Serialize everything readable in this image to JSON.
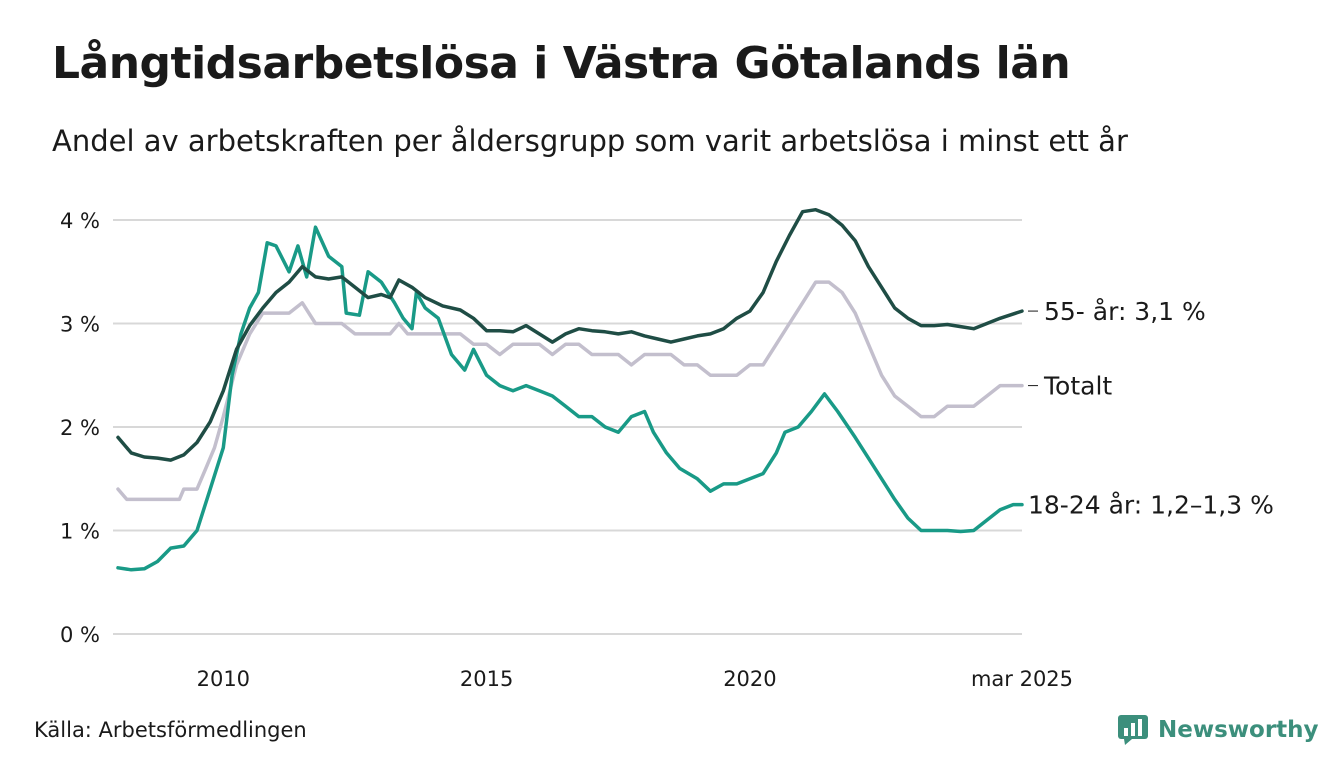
{
  "header": {
    "title": "Långtidsarbetslösa i Västra Götalands län",
    "subtitle": "Andel av arbetskraften per åldersgrupp som varit arbetslösa i minst ett år"
  },
  "footer": {
    "source": "Källa: Arbetsförmedlingen",
    "brand": "Newsworthy"
  },
  "colors": {
    "s55": "#1f4d45",
    "total": "#c3bfcd",
    "s1824": "#199a87",
    "grid": "#d8d8d8",
    "brand": "#3c8f7c"
  },
  "chart_data": {
    "type": "line",
    "title": "Långtidsarbetslösa i Västra Götalands län",
    "subtitle": "Andel av arbetskraften per åldersgrupp som varit arbetslösa i minst ett år",
    "xlabel": "",
    "ylabel": "",
    "ylim": [
      0,
      4
    ],
    "xlim": [
      "2008-01",
      "2025-03"
    ],
    "y_ticks": [
      {
        "value": 0,
        "label": "0 %"
      },
      {
        "value": 1,
        "label": "1 %"
      },
      {
        "value": 2,
        "label": "2 %"
      },
      {
        "value": 3,
        "label": "3 %"
      },
      {
        "value": 4,
        "label": "4 %"
      }
    ],
    "x_ticks": [
      {
        "date": "2010-01",
        "label": "2010"
      },
      {
        "date": "2015-01",
        "label": "2015"
      },
      {
        "date": "2020-01",
        "label": "2020"
      },
      {
        "date": "2025-03",
        "label": "mar 2025"
      }
    ],
    "grid": true,
    "legend": "end-labels",
    "series": [
      {
        "key": "s55",
        "end_label": "55- år: 3,1 %",
        "points": [
          [
            "2008-01",
            1.9
          ],
          [
            "2008-04",
            1.75
          ],
          [
            "2008-07",
            1.71
          ],
          [
            "2008-10",
            1.7
          ],
          [
            "2009-01",
            1.68
          ],
          [
            "2009-04",
            1.73
          ],
          [
            "2009-07",
            1.85
          ],
          [
            "2009-10",
            2.05
          ],
          [
            "2010-01",
            2.35
          ],
          [
            "2010-04",
            2.75
          ],
          [
            "2010-07",
            2.98
          ],
          [
            "2010-10",
            3.15
          ],
          [
            "2011-01",
            3.3
          ],
          [
            "2011-04",
            3.4
          ],
          [
            "2011-07",
            3.55
          ],
          [
            "2011-10",
            3.45
          ],
          [
            "2012-01",
            3.43
          ],
          [
            "2012-04",
            3.45
          ],
          [
            "2012-07",
            3.35
          ],
          [
            "2012-10",
            3.25
          ],
          [
            "2013-01",
            3.28
          ],
          [
            "2013-03",
            3.25
          ],
          [
            "2013-05",
            3.42
          ],
          [
            "2013-08",
            3.35
          ],
          [
            "2013-11",
            3.25
          ],
          [
            "2014-03",
            3.17
          ],
          [
            "2014-07",
            3.13
          ],
          [
            "2014-10",
            3.05
          ],
          [
            "2015-01",
            2.93
          ],
          [
            "2015-04",
            2.93
          ],
          [
            "2015-07",
            2.92
          ],
          [
            "2015-10",
            2.98
          ],
          [
            "2016-01",
            2.9
          ],
          [
            "2016-04",
            2.82
          ],
          [
            "2016-07",
            2.9
          ],
          [
            "2016-10",
            2.95
          ],
          [
            "2017-01",
            2.93
          ],
          [
            "2017-04",
            2.92
          ],
          [
            "2017-07",
            2.9
          ],
          [
            "2017-10",
            2.92
          ],
          [
            "2018-01",
            2.88
          ],
          [
            "2018-04",
            2.85
          ],
          [
            "2018-07",
            2.82
          ],
          [
            "2018-10",
            2.85
          ],
          [
            "2019-01",
            2.88
          ],
          [
            "2019-04",
            2.9
          ],
          [
            "2019-07",
            2.95
          ],
          [
            "2019-10",
            3.05
          ],
          [
            "2020-01",
            3.12
          ],
          [
            "2020-04",
            3.3
          ],
          [
            "2020-07",
            3.6
          ],
          [
            "2020-10",
            3.85
          ],
          [
            "2021-01",
            4.08
          ],
          [
            "2021-04",
            4.1
          ],
          [
            "2021-07",
            4.05
          ],
          [
            "2021-10",
            3.95
          ],
          [
            "2022-01",
            3.8
          ],
          [
            "2022-04",
            3.55
          ],
          [
            "2022-07",
            3.35
          ],
          [
            "2022-10",
            3.15
          ],
          [
            "2023-01",
            3.05
          ],
          [
            "2023-04",
            2.98
          ],
          [
            "2023-07",
            2.98
          ],
          [
            "2023-10",
            2.99
          ],
          [
            "2024-01",
            2.97
          ],
          [
            "2024-04",
            2.95
          ],
          [
            "2024-07",
            3.0
          ],
          [
            "2024-10",
            3.05
          ],
          [
            "2025-03",
            3.12
          ]
        ]
      },
      {
        "key": "total",
        "end_label": "Totalt",
        "points": [
          [
            "2008-01",
            1.4
          ],
          [
            "2008-03",
            1.3
          ],
          [
            "2008-06",
            1.3
          ],
          [
            "2008-09",
            1.3
          ],
          [
            "2008-12",
            1.3
          ],
          [
            "2009-03",
            1.3
          ],
          [
            "2009-04",
            1.4
          ],
          [
            "2009-07",
            1.4
          ],
          [
            "2009-09",
            1.6
          ],
          [
            "2009-11",
            1.8
          ],
          [
            "2010-01",
            2.1
          ],
          [
            "2010-04",
            2.6
          ],
          [
            "2010-07",
            2.9
          ],
          [
            "2010-10",
            3.1
          ],
          [
            "2011-01",
            3.1
          ],
          [
            "2011-04",
            3.1
          ],
          [
            "2011-07",
            3.2
          ],
          [
            "2011-10",
            3.0
          ],
          [
            "2012-01",
            3.0
          ],
          [
            "2012-04",
            3.0
          ],
          [
            "2012-07",
            2.9
          ],
          [
            "2012-10",
            2.9
          ],
          [
            "2013-01",
            2.9
          ],
          [
            "2013-03",
            2.9
          ],
          [
            "2013-05",
            3.0
          ],
          [
            "2013-07",
            2.9
          ],
          [
            "2013-10",
            2.9
          ],
          [
            "2014-01",
            2.9
          ],
          [
            "2014-04",
            2.9
          ],
          [
            "2014-07",
            2.9
          ],
          [
            "2014-10",
            2.8
          ],
          [
            "2015-01",
            2.8
          ],
          [
            "2015-04",
            2.7
          ],
          [
            "2015-07",
            2.8
          ],
          [
            "2015-10",
            2.8
          ],
          [
            "2016-01",
            2.8
          ],
          [
            "2016-04",
            2.7
          ],
          [
            "2016-07",
            2.8
          ],
          [
            "2016-10",
            2.8
          ],
          [
            "2017-01",
            2.7
          ],
          [
            "2017-04",
            2.7
          ],
          [
            "2017-07",
            2.7
          ],
          [
            "2017-10",
            2.6
          ],
          [
            "2018-01",
            2.7
          ],
          [
            "2018-04",
            2.7
          ],
          [
            "2018-07",
            2.7
          ],
          [
            "2018-10",
            2.6
          ],
          [
            "2019-01",
            2.6
          ],
          [
            "2019-04",
            2.5
          ],
          [
            "2019-07",
            2.5
          ],
          [
            "2019-10",
            2.5
          ],
          [
            "2020-01",
            2.6
          ],
          [
            "2020-04",
            2.6
          ],
          [
            "2020-07",
            2.8
          ],
          [
            "2020-10",
            3.0
          ],
          [
            "2021-01",
            3.2
          ],
          [
            "2021-04",
            3.4
          ],
          [
            "2021-07",
            3.4
          ],
          [
            "2021-10",
            3.3
          ],
          [
            "2022-01",
            3.1
          ],
          [
            "2022-04",
            2.8
          ],
          [
            "2022-07",
            2.5
          ],
          [
            "2022-10",
            2.3
          ],
          [
            "2023-01",
            2.2
          ],
          [
            "2023-04",
            2.1
          ],
          [
            "2023-07",
            2.1
          ],
          [
            "2023-10",
            2.2
          ],
          [
            "2024-01",
            2.2
          ],
          [
            "2024-04",
            2.2
          ],
          [
            "2024-07",
            2.3
          ],
          [
            "2024-10",
            2.4
          ],
          [
            "2025-03",
            2.4
          ]
        ]
      },
      {
        "key": "s1824",
        "end_label": "18-24 år: 1,2–1,3 %",
        "points": [
          [
            "2008-01",
            0.64
          ],
          [
            "2008-04",
            0.62
          ],
          [
            "2008-07",
            0.63
          ],
          [
            "2008-10",
            0.7
          ],
          [
            "2009-01",
            0.83
          ],
          [
            "2009-04",
            0.85
          ],
          [
            "2009-07",
            1.0
          ],
          [
            "2009-10",
            1.4
          ],
          [
            "2010-01",
            1.8
          ],
          [
            "2010-03",
            2.5
          ],
          [
            "2010-05",
            2.9
          ],
          [
            "2010-07",
            3.15
          ],
          [
            "2010-09",
            3.3
          ],
          [
            "2010-11",
            3.78
          ],
          [
            "2011-01",
            3.75
          ],
          [
            "2011-04",
            3.5
          ],
          [
            "2011-06",
            3.75
          ],
          [
            "2011-08",
            3.45
          ],
          [
            "2011-10",
            3.93
          ],
          [
            "2012-01",
            3.65
          ],
          [
            "2012-04",
            3.55
          ],
          [
            "2012-05",
            3.1
          ],
          [
            "2012-08",
            3.08
          ],
          [
            "2012-10",
            3.5
          ],
          [
            "2013-01",
            3.4
          ],
          [
            "2013-04",
            3.2
          ],
          [
            "2013-06",
            3.05
          ],
          [
            "2013-08",
            2.95
          ],
          [
            "2013-09",
            3.3
          ],
          [
            "2013-11",
            3.15
          ],
          [
            "2014-02",
            3.05
          ],
          [
            "2014-05",
            2.7
          ],
          [
            "2014-08",
            2.55
          ],
          [
            "2014-10",
            2.75
          ],
          [
            "2015-01",
            2.5
          ],
          [
            "2015-04",
            2.4
          ],
          [
            "2015-07",
            2.35
          ],
          [
            "2015-10",
            2.4
          ],
          [
            "2016-01",
            2.35
          ],
          [
            "2016-04",
            2.3
          ],
          [
            "2016-07",
            2.2
          ],
          [
            "2016-10",
            2.1
          ],
          [
            "2017-01",
            2.1
          ],
          [
            "2017-04",
            2.0
          ],
          [
            "2017-07",
            1.95
          ],
          [
            "2017-10",
            2.1
          ],
          [
            "2018-01",
            2.15
          ],
          [
            "2018-03",
            1.95
          ],
          [
            "2018-06",
            1.75
          ],
          [
            "2018-09",
            1.6
          ],
          [
            "2019-01",
            1.5
          ],
          [
            "2019-04",
            1.38
          ],
          [
            "2019-07",
            1.45
          ],
          [
            "2019-10",
            1.45
          ],
          [
            "2020-01",
            1.5
          ],
          [
            "2020-04",
            1.55
          ],
          [
            "2020-07",
            1.75
          ],
          [
            "2020-09",
            1.95
          ],
          [
            "2020-12",
            2.0
          ],
          [
            "2021-03",
            2.15
          ],
          [
            "2021-06",
            2.32
          ],
          [
            "2021-09",
            2.15
          ],
          [
            "2022-01",
            1.9
          ],
          [
            "2022-04",
            1.7
          ],
          [
            "2022-07",
            1.5
          ],
          [
            "2022-10",
            1.3
          ],
          [
            "2023-01",
            1.12
          ],
          [
            "2023-04",
            1.0
          ],
          [
            "2023-07",
            1.0
          ],
          [
            "2023-10",
            1.0
          ],
          [
            "2024-01",
            0.99
          ],
          [
            "2024-04",
            1.0
          ],
          [
            "2024-07",
            1.1
          ],
          [
            "2024-10",
            1.2
          ],
          [
            "2025-01",
            1.25
          ],
          [
            "2025-03",
            1.25
          ]
        ]
      }
    ]
  }
}
